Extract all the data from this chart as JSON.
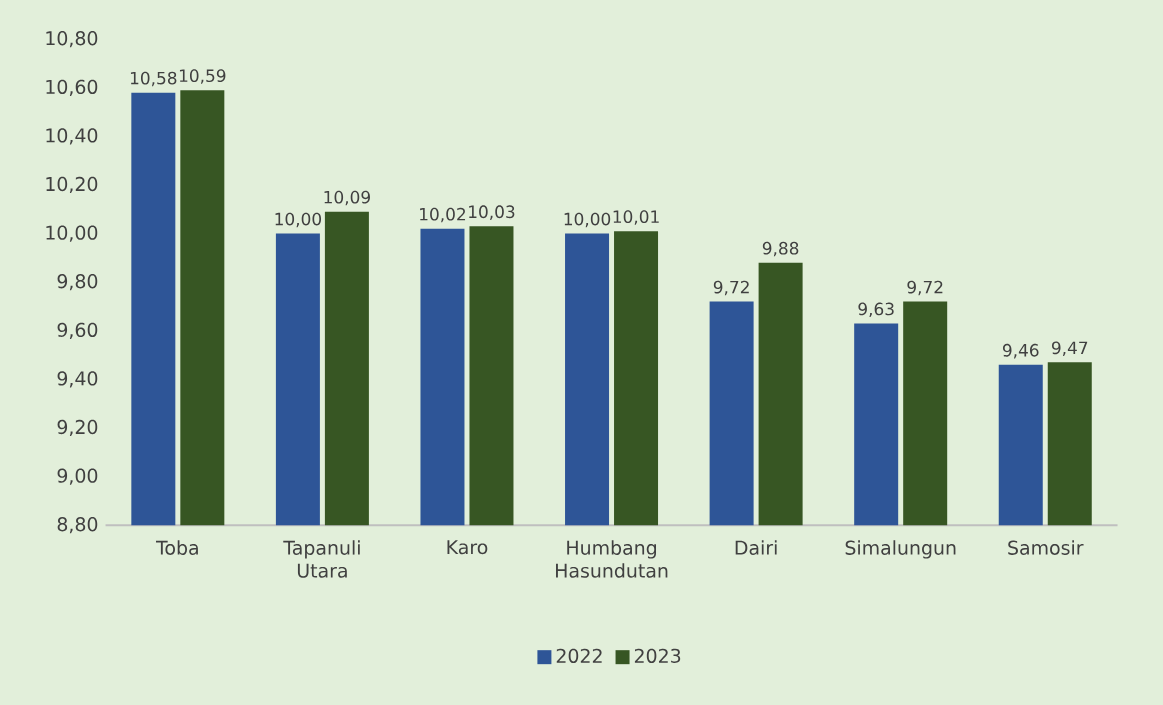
{
  "chart_data": {
    "type": "bar",
    "categories": [
      "Toba",
      "Tapanuli Utara",
      "Karo",
      "Humbang Hasundutan",
      "Dairi",
      "Simalungun",
      "Samosir"
    ],
    "series": [
      {
        "name": "2022",
        "color": "#2e5597",
        "values": [
          10.58,
          10.0,
          10.02,
          10.0,
          9.72,
          9.63,
          9.46
        ],
        "value_labels": [
          "10,58",
          "10,00",
          "10,02",
          "10,00",
          "9,72",
          "9,63",
          "9,46"
        ]
      },
      {
        "name": "2023",
        "color": "#375623",
        "values": [
          10.59,
          10.09,
          10.03,
          10.01,
          9.88,
          9.72,
          9.47
        ],
        "value_labels": [
          "10,59",
          "10,09",
          "10,03",
          "10,01",
          "9,88",
          "9,72",
          "9,47"
        ]
      }
    ],
    "ylim": [
      8.8,
      10.8
    ],
    "yticks": [
      {
        "value": 8.8,
        "label": "8,80"
      },
      {
        "value": 9.0,
        "label": "9,00"
      },
      {
        "value": 9.2,
        "label": "9,20"
      },
      {
        "value": 9.4,
        "label": "9,40"
      },
      {
        "value": 9.6,
        "label": "9,60"
      },
      {
        "value": 9.8,
        "label": "9,80"
      },
      {
        "value": 10.0,
        "label": "10,00"
      },
      {
        "value": 10.2,
        "label": "10,20"
      },
      {
        "value": 10.4,
        "label": "10,40"
      },
      {
        "value": 10.6,
        "label": "10,60"
      },
      {
        "value": 10.8,
        "label": "10,80"
      }
    ],
    "legend": "bottom"
  }
}
